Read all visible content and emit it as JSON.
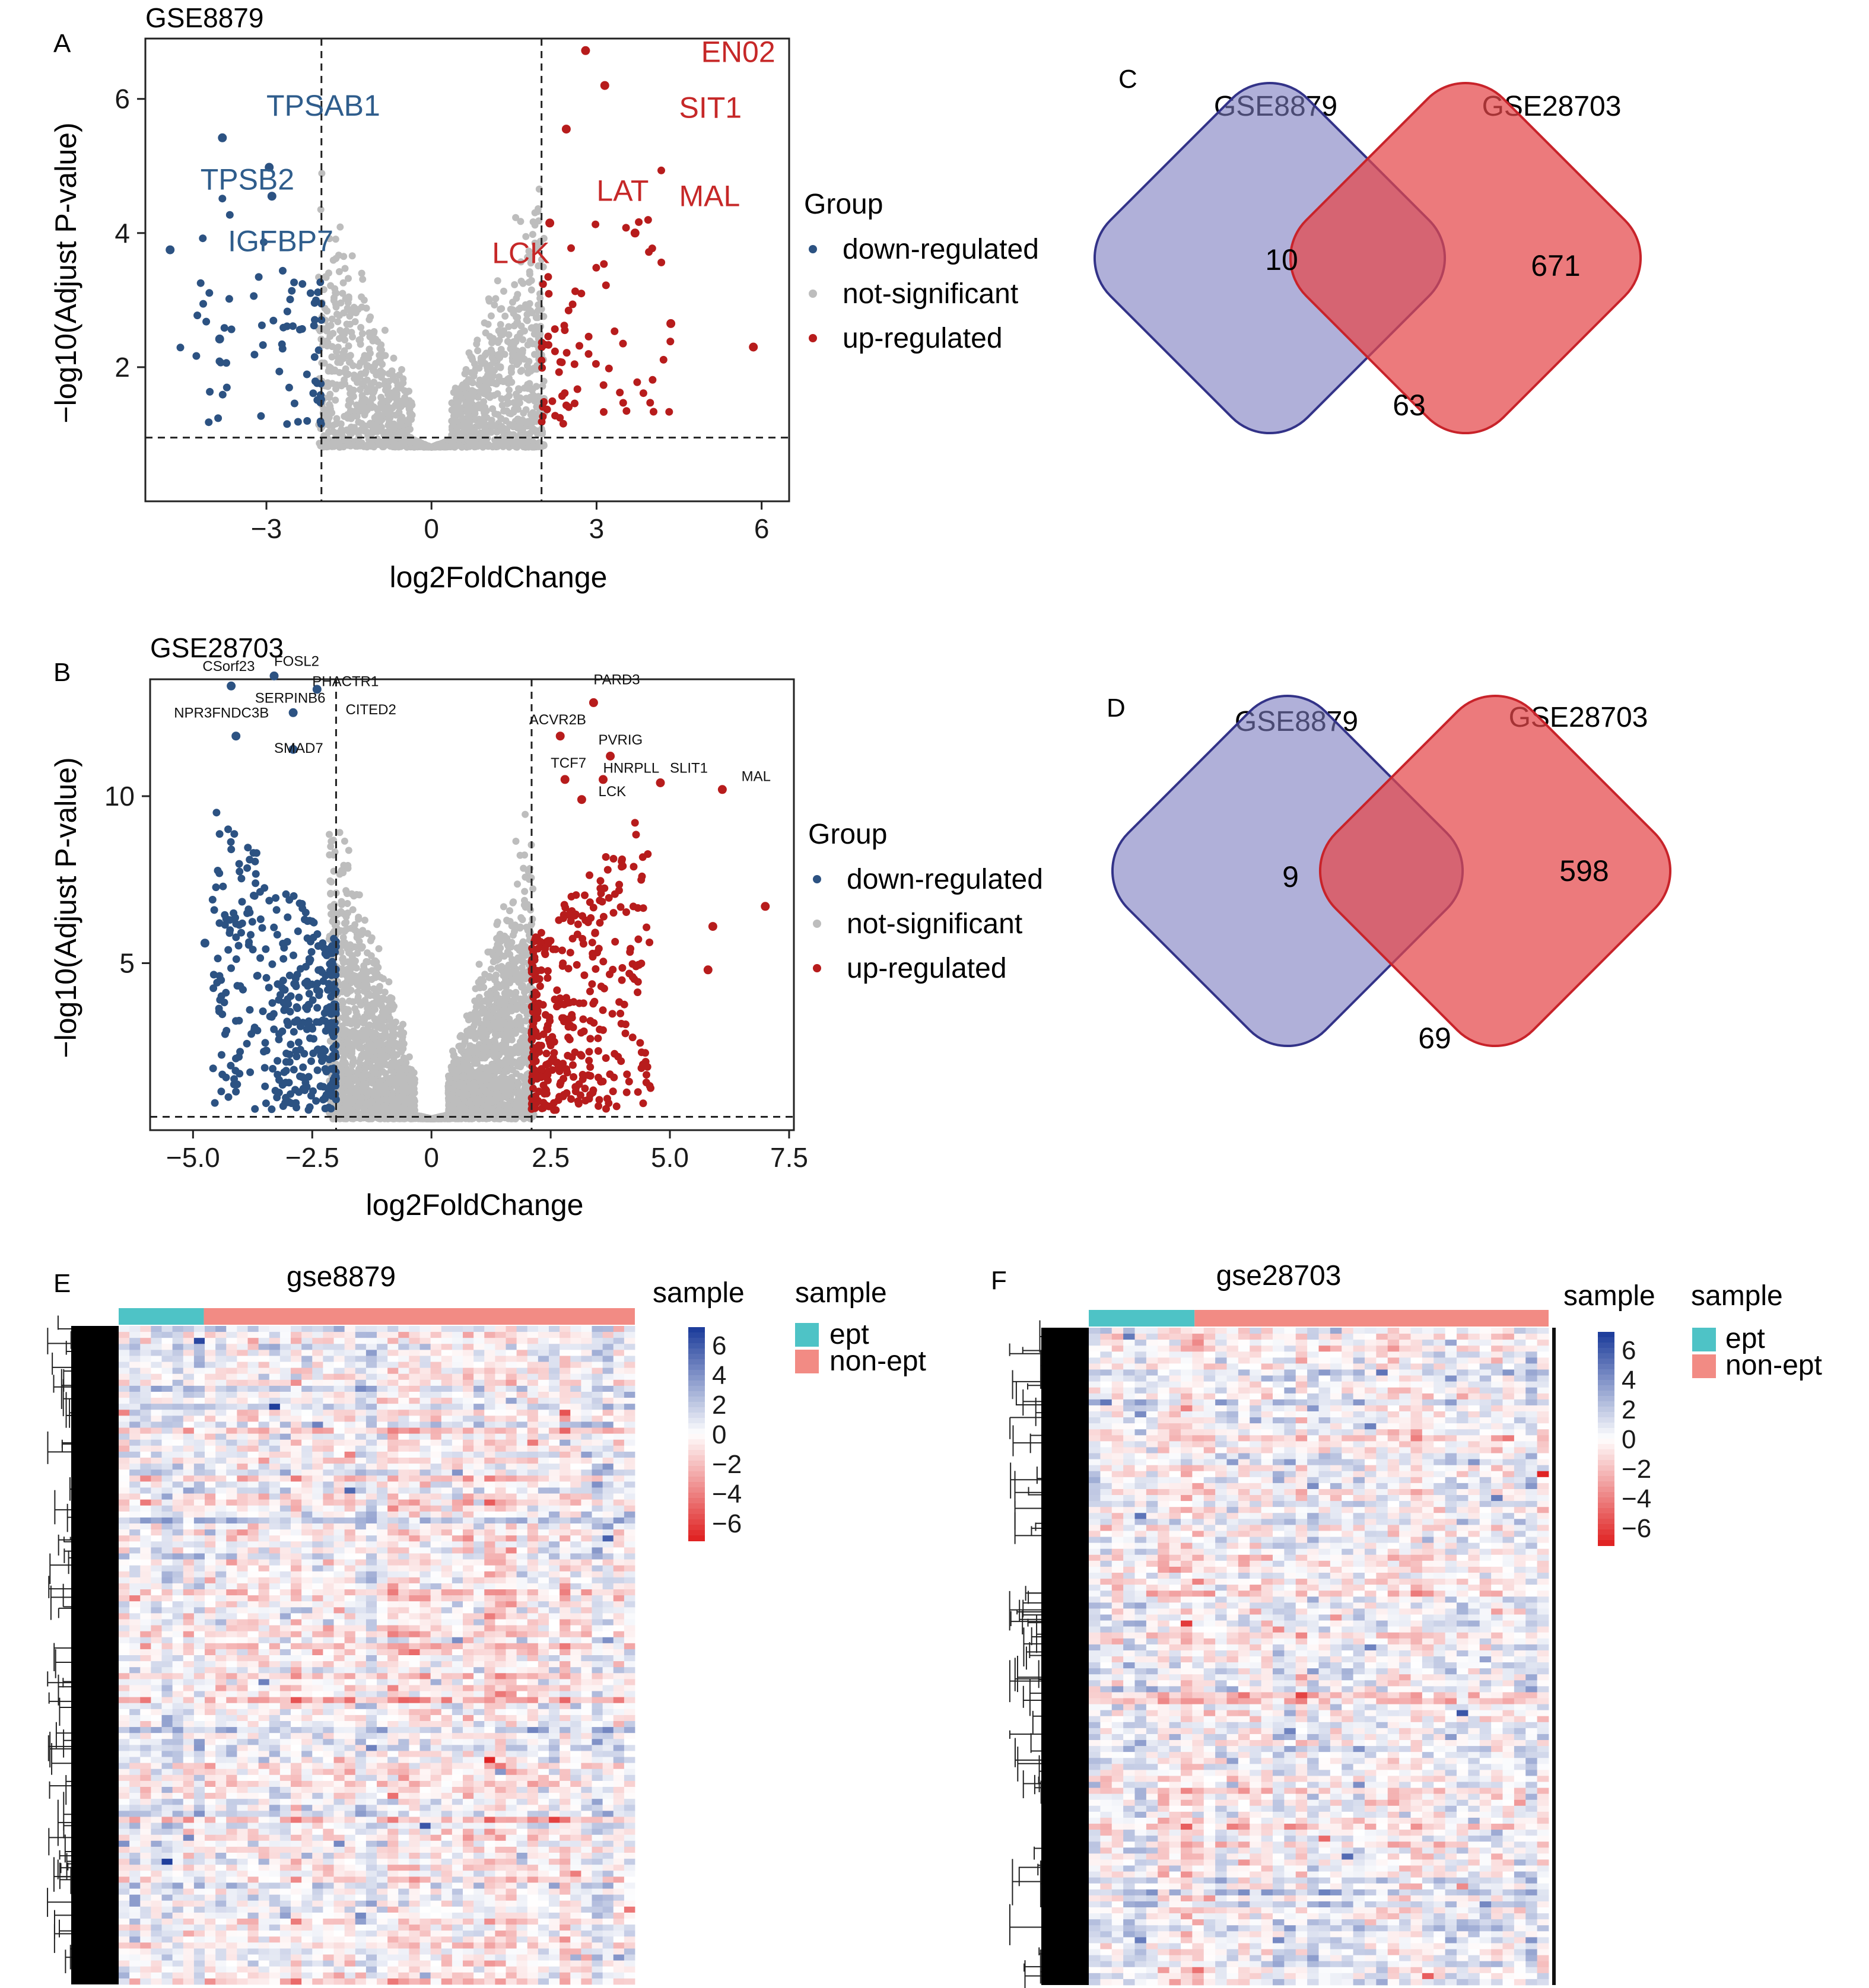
{
  "panels": {
    "A": {
      "letter": "A",
      "chart_data": {
        "type": "scatter",
        "title": "GSE8879",
        "xlabel": "log2FoldChange",
        "ylabel": "−log10(Adjust P-value)",
        "xlim": [
          -5.2,
          6.5
        ],
        "ylim": [
          0,
          6.9
        ],
        "xticks": [
          -3,
          0,
          3,
          6
        ],
        "xtick_labels": [
          "−3",
          "0",
          "3",
          "6"
        ],
        "yticks": [
          2,
          4,
          6
        ],
        "ytick_labels": [
          "2",
          "4",
          "6"
        ],
        "vlines": [
          -2,
          2
        ],
        "hline": 0.95,
        "legend_title": "Group",
        "legend_position": "right",
        "series": [
          {
            "name": "down-regulated",
            "color": "#2c5282"
          },
          {
            "name": "not-significant",
            "color": "#bdbdbd"
          },
          {
            "name": "up-regulated",
            "color": "#b71c1c"
          }
        ],
        "highlighted_points": [
          {
            "x": -3.8,
            "y": 5.42,
            "group": "down-regulated"
          },
          {
            "x": -2.95,
            "y": 4.98,
            "group": "down-regulated"
          },
          {
            "x": -2.9,
            "y": 4.55,
            "group": "down-regulated"
          },
          {
            "x": -4.75,
            "y": 3.75,
            "group": "down-regulated"
          },
          {
            "x": -3.85,
            "y": 2.42,
            "group": "down-regulated"
          },
          {
            "x": 2.8,
            "y": 6.72,
            "group": "up-regulated"
          },
          {
            "x": 3.15,
            "y": 6.2,
            "group": "up-regulated"
          },
          {
            "x": 2.45,
            "y": 5.55,
            "group": "up-regulated"
          },
          {
            "x": 2.15,
            "y": 4.15,
            "group": "up-regulated"
          },
          {
            "x": 3.7,
            "y": 4.0,
            "group": "up-regulated"
          },
          {
            "x": 4.35,
            "y": 2.65,
            "group": "up-regulated"
          },
          {
            "x": 5.85,
            "y": 2.3,
            "group": "up-regulated"
          }
        ],
        "annotations": [
          {
            "text": "TPSAB1",
            "x": -3.0,
            "y": 5.75,
            "group": "down-regulated"
          },
          {
            "text": "TPSB2",
            "x": -4.2,
            "y": 4.65,
            "group": "down-regulated"
          },
          {
            "text": "IGFBP7",
            "x": -3.7,
            "y": 3.73,
            "group": "down-regulated"
          },
          {
            "text": "EN02",
            "x": 4.9,
            "y": 6.55,
            "group": "up-regulated"
          },
          {
            "text": "SIT1",
            "x": 4.5,
            "y": 5.72,
            "group": "up-regulated"
          },
          {
            "text": "LAT",
            "x": 3.0,
            "y": 4.48,
            "group": "up-regulated"
          },
          {
            "text": "MAL",
            "x": 4.5,
            "y": 4.4,
            "group": "up-regulated"
          },
          {
            "text": "LCK",
            "x": 1.1,
            "y": 3.55,
            "group": "up-regulated"
          }
        ]
      }
    },
    "B": {
      "letter": "B",
      "chart_data": {
        "type": "scatter",
        "title": "GSE28703",
        "xlabel": "log2FoldChange",
        "ylabel": "−log10(Adjust P-value)",
        "xlim": [
          -5.9,
          7.6
        ],
        "ylim": [
          0,
          13.5
        ],
        "xticks": [
          -5,
          -2.5,
          0,
          2.5,
          5,
          7.5
        ],
        "xtick_labels": [
          "−5.0",
          "−2.5",
          "0",
          "2.5",
          "5.0",
          "7.5"
        ],
        "yticks": [
          5,
          10
        ],
        "ytick_labels": [
          "5",
          "10"
        ],
        "vlines": [
          -2,
          2.1
        ],
        "hline": 0.4,
        "legend_title": "Group",
        "legend_position": "right",
        "series": [
          {
            "name": "down-regulated",
            "color": "#2c5282"
          },
          {
            "name": "not-significant",
            "color": "#bdbdbd"
          },
          {
            "name": "up-regulated",
            "color": "#b71c1c"
          }
        ],
        "highlighted_points": [
          {
            "x": -4.2,
            "y": 13.3,
            "group": "down-regulated"
          },
          {
            "x": -3.3,
            "y": 13.6,
            "group": "down-regulated"
          },
          {
            "x": -2.4,
            "y": 13.2,
            "group": "down-regulated"
          },
          {
            "x": -2.9,
            "y": 12.5,
            "group": "down-regulated"
          },
          {
            "x": -4.1,
            "y": 11.8,
            "group": "down-regulated"
          },
          {
            "x": -2.9,
            "y": 11.4,
            "group": "down-regulated"
          },
          {
            "x": -4.75,
            "y": 5.6,
            "group": "down-regulated"
          },
          {
            "x": 3.4,
            "y": 12.8,
            "group": "up-regulated"
          },
          {
            "x": 2.7,
            "y": 11.8,
            "group": "up-regulated"
          },
          {
            "x": 3.75,
            "y": 11.2,
            "group": "up-regulated"
          },
          {
            "x": 2.8,
            "y": 10.5,
            "group": "up-regulated"
          },
          {
            "x": 3.6,
            "y": 10.5,
            "group": "up-regulated"
          },
          {
            "x": 4.8,
            "y": 10.4,
            "group": "up-regulated"
          },
          {
            "x": 3.15,
            "y": 9.9,
            "group": "up-regulated"
          },
          {
            "x": 6.1,
            "y": 10.2,
            "group": "up-regulated"
          },
          {
            "x": 7.0,
            "y": 6.7,
            "group": "up-regulated"
          },
          {
            "x": 5.9,
            "y": 6.1,
            "group": "up-regulated"
          },
          {
            "x": 5.8,
            "y": 4.8,
            "group": "up-regulated"
          }
        ],
        "annotations": [
          {
            "text": "CSorf23",
            "x": -4.8,
            "y": 13.75
          },
          {
            "text": "FOSL2",
            "x": -3.3,
            "y": 13.9
          },
          {
            "text": "PHACTR1",
            "x": -2.5,
            "y": 13.3
          },
          {
            "text": "SERPINB6",
            "x": -3.7,
            "y": 12.8
          },
          {
            "text": "NPR3FNDC3B",
            "x": -5.4,
            "y": 12.35
          },
          {
            "text": "CITED2",
            "x": -1.8,
            "y": 12.45
          },
          {
            "text": "SMAD7",
            "x": -3.3,
            "y": 11.3
          },
          {
            "text": "PARD3",
            "x": 3.4,
            "y": 13.35
          },
          {
            "text": "ACVR2B",
            "x": 2.05,
            "y": 12.15
          },
          {
            "text": "PVRIG",
            "x": 3.5,
            "y": 11.55
          },
          {
            "text": "TCF7",
            "x": 2.5,
            "y": 10.85
          },
          {
            "text": "HNRPLL",
            "x": 3.6,
            "y": 10.7
          },
          {
            "text": "SLIT1",
            "x": 5.0,
            "y": 10.7
          },
          {
            "text": "MAL",
            "x": 6.5,
            "y": 10.45
          },
          {
            "text": "LCK",
            "x": 3.5,
            "y": 10.0
          }
        ]
      }
    },
    "C": {
      "letter": "C",
      "venn": {
        "sets": [
          "GSE8879",
          "GSE28703"
        ],
        "only_left": "10",
        "only_right": "671",
        "overlap": "63",
        "left_color": "#7b7bc0",
        "right_color": "#e5464a"
      }
    },
    "D": {
      "letter": "D",
      "venn": {
        "sets": [
          "GSE8879",
          "GSE28703"
        ],
        "only_left": "9",
        "only_right": "598",
        "overlap": "69",
        "left_color": "#7b7bc0",
        "right_color": "#e5464a"
      }
    },
    "E": {
      "letter": "E",
      "chart_data": {
        "type": "heatmap",
        "title": "gse8879",
        "colorbar_title": "sample",
        "colorbar_ticks": [
          "6",
          "4",
          "2",
          "0",
          "−2",
          "−4",
          "−6"
        ],
        "colorbar_colors": [
          "#1f3e9c",
          "#ffffff",
          "#e02424"
        ],
        "legend_title": "sample",
        "legend": [
          {
            "label": "ept",
            "color": "#4ec3c6"
          },
          {
            "label": "non-ept",
            "color": "#f28b84"
          }
        ],
        "sample_groups": [
          {
            "label": "ept",
            "fraction": 0.165
          },
          {
            "label": "non-ept",
            "fraction": 0.835
          }
        ],
        "value_range": [
          -6,
          6
        ]
      }
    },
    "F": {
      "letter": "F",
      "chart_data": {
        "type": "heatmap",
        "title": "gse28703",
        "colorbar_title": "sample",
        "colorbar_ticks": [
          "6",
          "4",
          "2",
          "0",
          "−2",
          "−4",
          "−6"
        ],
        "colorbar_colors": [
          "#1f3e9c",
          "#ffffff",
          "#e02424"
        ],
        "legend_title": "sample",
        "legend": [
          {
            "label": "ept",
            "color": "#4ec3c6"
          },
          {
            "label": "non-ept",
            "color": "#f28b84"
          }
        ],
        "sample_groups": [
          {
            "label": "ept",
            "fraction": 0.23
          },
          {
            "label": "non-ept",
            "fraction": 0.77
          }
        ],
        "value_range": [
          -6,
          6
        ]
      }
    }
  }
}
